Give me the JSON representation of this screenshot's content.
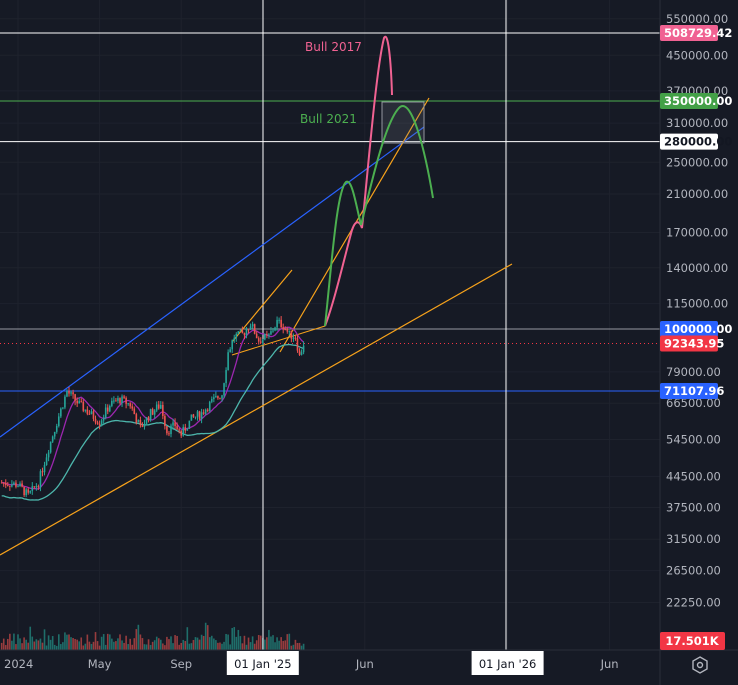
{
  "chart_data": {
    "type": "candlestick",
    "title": "",
    "scale": "log",
    "y_ticks": [
      550000,
      450000,
      370000,
      310000,
      250000,
      210000,
      170000,
      140000,
      115000,
      79000,
      66500,
      54500,
      44500,
      37500,
      31500,
      26500,
      22250
    ],
    "x_ticks": [
      {
        "label": "2024",
        "month": 0
      },
      {
        "label": "May",
        "month": 4
      },
      {
        "label": "Sep",
        "month": 8
      },
      {
        "label": "01 Jan '25",
        "month": 12,
        "highlight": true
      },
      {
        "label": "Jun",
        "month": 17
      },
      {
        "label": "01 Jan '26",
        "month": 24,
        "highlight": true
      },
      {
        "label": "Jun",
        "month": 29
      }
    ],
    "price_series_month_close": [
      [
        -0.8,
        43000
      ],
      [
        0,
        42500
      ],
      [
        0.5,
        40000
      ],
      [
        1,
        43000
      ],
      [
        1.5,
        52000
      ],
      [
        2,
        62000
      ],
      [
        2.4,
        71000
      ],
      [
        3,
        66000
      ],
      [
        3.5,
        63000
      ],
      [
        4,
        60000
      ],
      [
        4.5,
        66000
      ],
      [
        5,
        68000
      ],
      [
        5.5,
        66000
      ],
      [
        6,
        58000
      ],
      [
        6.5,
        63000
      ],
      [
        7,
        66000
      ],
      [
        7.3,
        57000
      ],
      [
        7.7,
        59000
      ],
      [
        8,
        56000
      ],
      [
        8.5,
        61000
      ],
      [
        9,
        63000
      ],
      [
        9.5,
        67000
      ],
      [
        10,
        70000
      ],
      [
        10.3,
        88000
      ],
      [
        10.6,
        96000
      ],
      [
        11,
        97000
      ],
      [
        11.4,
        103000
      ],
      [
        11.8,
        94000
      ],
      [
        12.3,
        96000
      ],
      [
        12.7,
        104000
      ],
      [
        13,
        102000
      ],
      [
        13.3,
        97000
      ],
      [
        13.6,
        96000
      ],
      [
        13.8,
        86000
      ],
      [
        14,
        92343.95
      ]
    ],
    "horizontal_levels": [
      {
        "value": 508729.42,
        "label": "508729.42",
        "color": "#f06292",
        "line": "#ffffff"
      },
      {
        "value": 350000,
        "label": "350000.00",
        "color": "#43a047",
        "line": "#4caf50"
      },
      {
        "value": 280000,
        "label": "280000.00",
        "color": "#ffffff",
        "line": "#ffffff"
      },
      {
        "value": 100000,
        "label": "100000.00",
        "color": "#2962ff",
        "line": "#9598a1"
      },
      {
        "value": 92343.95,
        "label": "92343.95",
        "color": "#f23645",
        "line": "#f23645"
      },
      {
        "value": 71107.96,
        "label": "71107.96",
        "color": "#2962ff",
        "line": "#2962ff"
      }
    ],
    "annotations": [
      {
        "text": "Bull 2017",
        "color": "#f06292"
      },
      {
        "text": "Bull 2021",
        "color": "#4caf50"
      }
    ],
    "volume_label": "17.501K"
  }
}
